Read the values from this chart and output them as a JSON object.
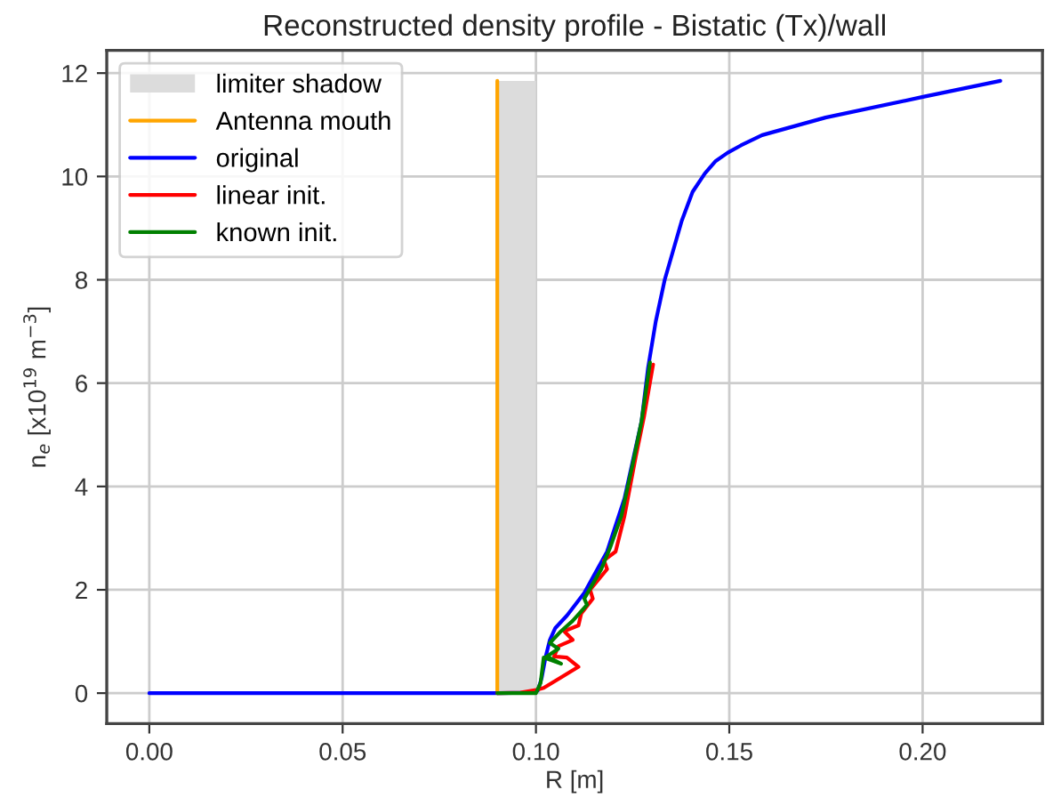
{
  "chart_data": {
    "type": "line",
    "title": "Reconstructed density profile - Bistatic (Tx)/wall",
    "xlabel": "R [m]",
    "ylabel": "n$_{e}$ [x10$^{19}$ m$^{−3}$]",
    "series": [
      {
        "name": "limiter shadow",
        "type": "area",
        "color": "#dcdcdc",
        "x": [
          0.09,
          0.1
        ],
        "values": [
          11.85,
          11.85
        ]
      },
      {
        "name": "Antenna mouth",
        "color": "#ffa500",
        "x": [
          0.09,
          0.09
        ],
        "values": [
          0,
          11.85
        ]
      },
      {
        "name": "original",
        "color": "#0000ff",
        "x": [
          0,
          0.09,
          0.098,
          0.1005,
          0.1015,
          0.1025,
          0.1036,
          0.105,
          0.108,
          0.1125,
          0.1184,
          0.1229,
          0.1273,
          0.129,
          0.131,
          0.1333,
          0.1377,
          0.1405,
          0.1437,
          0.1465,
          0.1496,
          0.153,
          0.1585,
          0.1749,
          0.2001,
          0.2201
        ],
        "values": [
          0,
          0,
          0.01,
          0.05,
          0.3,
          0.7,
          1.03,
          1.26,
          1.5,
          1.94,
          2.74,
          3.77,
          5.26,
          6.3,
          7.2,
          8.0,
          9.14,
          9.7,
          10.06,
          10.3,
          10.46,
          10.6,
          10.8,
          11.14,
          11.54,
          11.85
        ]
      },
      {
        "name": "linear init.",
        "color": "#ff0000",
        "x": [
          0.09,
          0.096,
          0.1,
          0.102,
          0.111,
          0.108,
          0.1047,
          0.1058,
          0.1095,
          0.1073,
          0.111,
          0.1117,
          0.1147,
          0.114,
          0.1184,
          0.1176,
          0.1206,
          0.1229,
          0.1258,
          0.128,
          0.1303
        ],
        "values": [
          0,
          0.01,
          0.06,
          0.1,
          0.51,
          0.69,
          0.71,
          0.91,
          1.03,
          1.2,
          1.31,
          1.54,
          1.83,
          2.0,
          2.4,
          2.57,
          2.74,
          3.43,
          4.57,
          5.37,
          6.36
        ]
      },
      {
        "name": "known init.",
        "color": "#008000",
        "x": [
          0.09,
          0.1,
          0.1012,
          0.102,
          0.1065,
          0.1028,
          0.1058,
          0.1036,
          0.1065,
          0.1095,
          0.1132,
          0.1125,
          0.1169,
          0.1191,
          0.1221,
          0.1251,
          0.1273,
          0.1295
        ],
        "values": [
          0,
          0,
          0.2,
          0.69,
          0.57,
          0.71,
          0.86,
          0.97,
          1.2,
          1.4,
          1.71,
          1.83,
          2.4,
          2.8,
          3.43,
          4.46,
          5.26,
          6.4
        ]
      }
    ],
    "xlim": [
      -0.011,
      0.231
    ],
    "ylim": [
      -0.59,
      12.44
    ],
    "xticks": [
      {
        "value": 0,
        "label": "0.00"
      },
      0.05,
      {
        "value": 0.1,
        "label": "0.10"
      },
      0.15,
      {
        "value": 0.2,
        "label": "0.20"
      }
    ],
    "yticks": [
      0,
      2,
      4,
      6,
      8,
      10,
      12
    ],
    "grid": true,
    "legend": "top left",
    "marker": "none",
    "line_style": "solid"
  }
}
